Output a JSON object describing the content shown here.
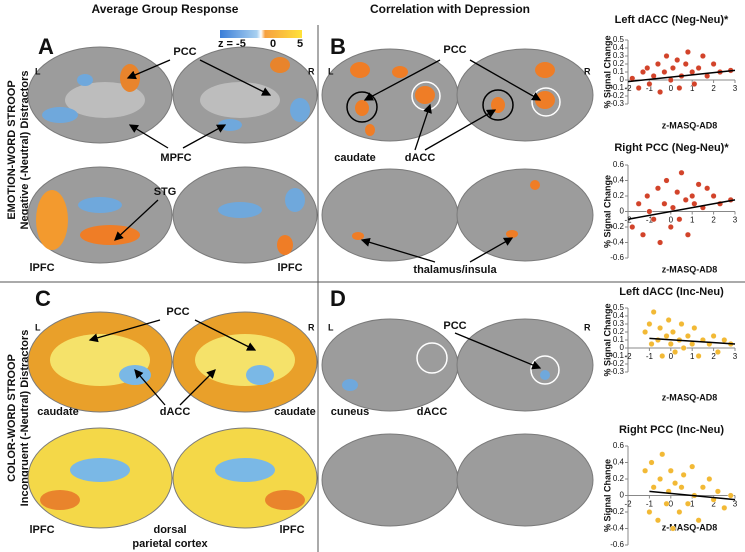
{
  "header": {
    "left": "Average Group Response",
    "middle": "Correlation with Depression"
  },
  "rows": [
    {
      "title": "EMOTION-WORD STROOP",
      "subtitle": "Negative (-Neutral) Distractors"
    },
    {
      "title": "COLOR-WORD STROOP",
      "subtitle": "Incongruent (-Neutral) Distractors"
    }
  ],
  "colorbar": {
    "label": "z = -5",
    "mid": "0",
    "max": "5"
  },
  "panels": [
    {
      "letter": "A",
      "left": "L",
      "right": "R",
      "labels": [
        "PCC",
        "MPFC",
        "STG",
        "lPFC",
        "lPFC"
      ]
    },
    {
      "letter": "B",
      "left": "L",
      "right": "R",
      "labels": [
        "PCC",
        "caudate",
        "dACC",
        "thalamus/insula"
      ]
    },
    {
      "letter": "C",
      "left": "L",
      "right": "R",
      "labels": [
        "PCC",
        "caudate",
        "caudate",
        "dACC",
        "lPFC",
        "lPFC",
        "dorsal",
        "parietal cortex"
      ]
    },
    {
      "letter": "D",
      "left": "L",
      "right": "R",
      "labels": [
        "PCC",
        "cuneus",
        "dACC"
      ]
    }
  ],
  "chart_data": [
    {
      "type": "scatter",
      "title": "Left dACC (Neg-Neu)*",
      "x_label": "z-MASQ-AD8",
      "y_label": "% Signal Change",
      "color": "#d2432a",
      "xlim": [
        -2,
        3
      ],
      "xticks": [
        -2,
        -1,
        0,
        1,
        2,
        3
      ],
      "ylim": [
        -0.3,
        0.5
      ],
      "yticks": [
        -0.3,
        -0.2,
        -0.1,
        0,
        0.1,
        0.2,
        0.3,
        0.4,
        0.5
      ],
      "x": [
        -1.8,
        -1.5,
        -1.3,
        -1.1,
        -1,
        -0.8,
        -0.6,
        -0.5,
        -0.3,
        -0.2,
        0,
        0.1,
        0.3,
        0.4,
        0.5,
        0.7,
        0.8,
        1,
        1.1,
        1.3,
        1.5,
        1.7,
        2,
        2.3,
        2.8
      ],
      "values": [
        0.02,
        -0.1,
        0.1,
        0.15,
        -0.05,
        0.05,
        0.2,
        -0.15,
        0.1,
        0.3,
        0,
        0.15,
        0.25,
        -0.1,
        0.05,
        0.2,
        0.35,
        0.1,
        -0.05,
        0.15,
        0.3,
        0.05,
        0.2,
        0.1,
        0.12
      ],
      "fit": {
        "x": [
          -2,
          3
        ],
        "y": [
          -0.02,
          0.12
        ]
      }
    },
    {
      "type": "scatter",
      "title": "Right PCC (Neg-Neu)*",
      "x_label": "z-MASQ-AD8",
      "y_label": "% Signal Change",
      "color": "#d2432a",
      "xlim": [
        -2,
        3
      ],
      "xticks": [
        -2,
        -1,
        0,
        1,
        2,
        3
      ],
      "ylim": [
        -0.6,
        0.6
      ],
      "yticks": [
        -0.6,
        -0.4,
        -0.2,
        0,
        0.2,
        0.4,
        0.6
      ],
      "x": [
        -1.8,
        -1.5,
        -1.3,
        -1.1,
        -1,
        -0.8,
        -0.6,
        -0.5,
        -0.3,
        -0.2,
        0,
        0.1,
        0.3,
        0.4,
        0.5,
        0.7,
        0.8,
        1,
        1.1,
        1.3,
        1.5,
        1.7,
        2,
        2.3,
        2.8
      ],
      "values": [
        -0.2,
        0.1,
        -0.3,
        0.2,
        0,
        -0.1,
        0.3,
        -0.4,
        0.1,
        0.4,
        -0.2,
        0.05,
        0.25,
        -0.1,
        0.5,
        0.15,
        -0.3,
        0.2,
        0.1,
        0.35,
        0.05,
        0.3,
        0.2,
        0.1,
        0.15
      ],
      "fit": {
        "x": [
          -2,
          3
        ],
        "y": [
          -0.1,
          0.15
        ]
      }
    },
    {
      "type": "scatter",
      "title": "Left dACC (Inc-Neu)",
      "x_label": "z-MASQ-AD8",
      "y_label": "% Signal Change",
      "color": "#f2b935",
      "xlim": [
        -2,
        3
      ],
      "xticks": [
        -2,
        -1,
        0,
        1,
        2,
        3
      ],
      "ylim": [
        -0.3,
        0.5
      ],
      "yticks": [
        -0.3,
        -0.2,
        -0.1,
        0,
        0.1,
        0.2,
        0.3,
        0.4,
        0.5
      ],
      "x": [
        -1.2,
        -1,
        -0.9,
        -0.8,
        -0.6,
        -0.5,
        -0.4,
        -0.2,
        -0.1,
        0,
        0.1,
        0.2,
        0.4,
        0.5,
        0.6,
        0.8,
        1,
        1.1,
        1.3,
        1.5,
        1.8,
        2,
        2.2,
        2.5,
        2.8
      ],
      "values": [
        0.2,
        0.3,
        0.05,
        0.45,
        0.1,
        0.25,
        -0.1,
        0.15,
        0.35,
        0.05,
        0.2,
        -0.05,
        0.1,
        0.3,
        0,
        0.15,
        0.05,
        0.25,
        -0.1,
        0.1,
        0.05,
        0.15,
        -0.05,
        0.1,
        0.05
      ],
      "fit": {
        "x": [
          -1,
          3
        ],
        "y": [
          0.12,
          0.05
        ]
      }
    },
    {
      "type": "scatter",
      "title": "Right PCC (Inc-Neu)",
      "x_label": "z-MASQ-AD8",
      "y_label": "% Signal Change",
      "color": "#f2b935",
      "xlim": [
        -2,
        3
      ],
      "xticks": [
        -2,
        -1,
        0,
        1,
        2,
        3
      ],
      "ylim": [
        -0.6,
        0.6
      ],
      "yticks": [
        -0.6,
        -0.4,
        -0.2,
        0,
        0.2,
        0.4,
        0.6
      ],
      "x": [
        -1.2,
        -1,
        -0.9,
        -0.8,
        -0.6,
        -0.5,
        -0.4,
        -0.2,
        -0.1,
        0,
        0.1,
        0.2,
        0.4,
        0.5,
        0.6,
        0.8,
        1,
        1.1,
        1.3,
        1.5,
        1.8,
        2,
        2.2,
        2.5,
        2.8
      ],
      "values": [
        0.3,
        -0.2,
        0.4,
        0.1,
        -0.3,
        0.2,
        0.5,
        -0.1,
        0.05,
        0.3,
        -0.4,
        0.15,
        -0.2,
        0.1,
        0.25,
        -0.1,
        0.35,
        0,
        -0.3,
        0.1,
        0.2,
        -0.05,
        0.05,
        -0.15,
        0
      ],
      "fit": {
        "x": [
          -1,
          3
        ],
        "y": [
          0.05,
          -0.05
        ]
      }
    }
  ]
}
